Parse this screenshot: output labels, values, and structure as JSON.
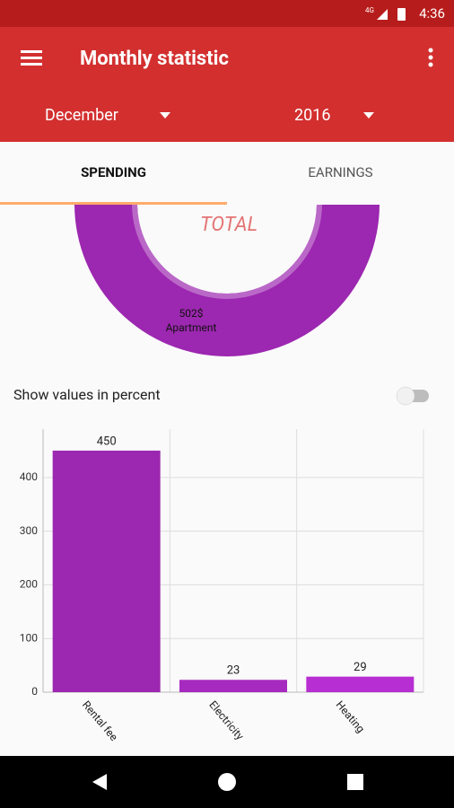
{
  "status_bar": {
    "network": "4G",
    "time": "4:36"
  },
  "app_bar": {
    "title": "Monthly statistic",
    "month": "December",
    "year": "2016"
  },
  "tabs": [
    "SPENDING",
    "EARNINGS"
  ],
  "selected_tab": 0,
  "donut": {
    "center_label": "TOTAL",
    "color": "#9c27b0",
    "segments": [
      {
        "name": "Apartment",
        "value": 502,
        "value_label": "502$"
      }
    ]
  },
  "toggle": {
    "label": "Show values in percent",
    "on": false
  },
  "chart_data": {
    "type": "bar",
    "categories": [
      "Rental fee",
      "Electricity",
      "Heating"
    ],
    "values": [
      450,
      23,
      29
    ],
    "colors": [
      "#9c27b0",
      "#a72ac0",
      "#b72fd2"
    ],
    "ylim": [
      0,
      490
    ],
    "yticks": [
      0,
      100,
      200,
      300,
      400
    ],
    "grid": true
  }
}
